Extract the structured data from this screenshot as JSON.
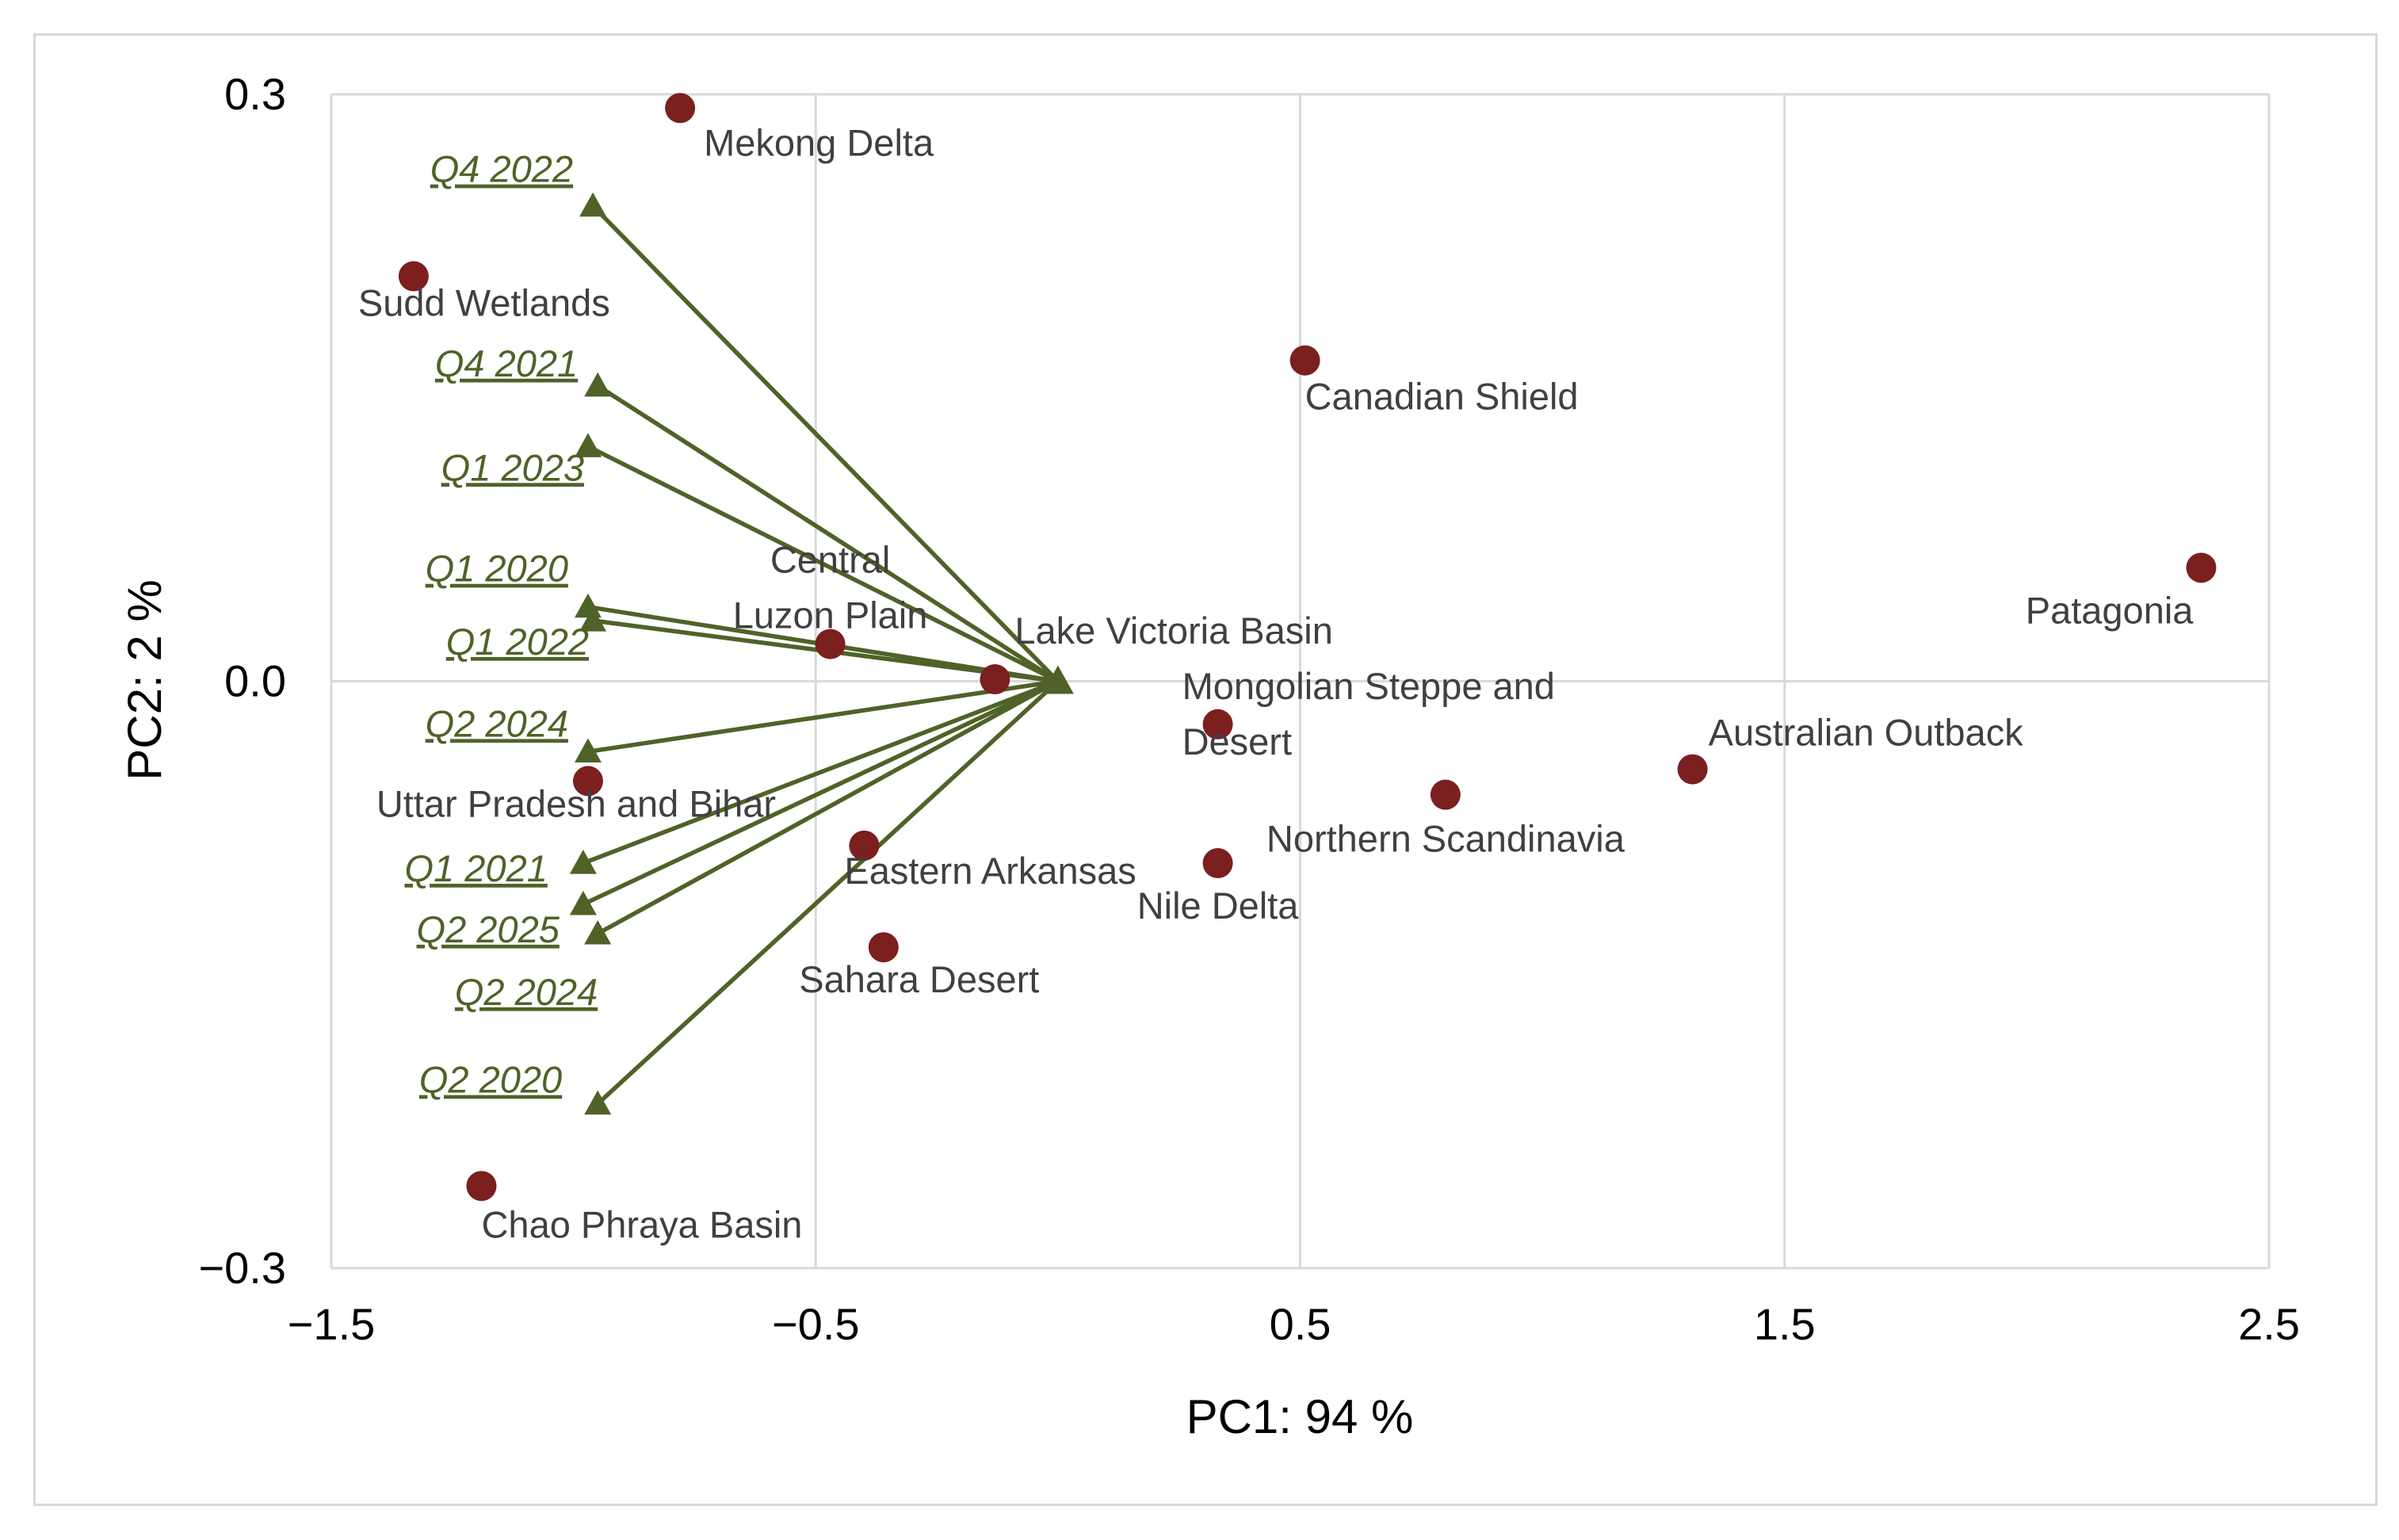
{
  "chart_data": {
    "type": "scatter",
    "subtype": "pca-biplot",
    "title": "",
    "xlabel": "PC1: 94 %",
    "ylabel": "PC2: 2 %",
    "xlim": [
      -1.5,
      2.5
    ],
    "ylim": [
      -0.3,
      0.3
    ],
    "x_ticks": [
      -1.5,
      -0.5,
      0.5,
      1.5,
      2.5
    ],
    "x_tick_labels": [
      "−1.5",
      "−0.5",
      "0.5",
      "1.5",
      "2.5"
    ],
    "y_ticks": [
      -0.3,
      0.0,
      0.3
    ],
    "y_tick_labels": [
      "−0.3",
      "0.0",
      "0.3"
    ],
    "grid": true,
    "colors": {
      "points": "#7b1f1f",
      "loadings": "#4f6228",
      "grid": "#d9d9d9",
      "point_label": "#404040"
    },
    "vector_origin": [
      0.0,
      0.0
    ],
    "points": [
      {
        "name": "Mekong Delta",
        "x": -0.78,
        "y": 0.293,
        "label_lines": [
          "Mekong Delta"
        ]
      },
      {
        "name": "Sudd Wetlands",
        "x": -1.33,
        "y": 0.207,
        "label_lines": [
          "Sudd Wetlands"
        ]
      },
      {
        "name": "Canadian Shield",
        "x": 0.51,
        "y": 0.164,
        "label_lines": [
          "Canadian Shield"
        ]
      },
      {
        "name": "Patagonia",
        "x": 2.36,
        "y": 0.058,
        "label_lines": [
          "Patagonia"
        ]
      },
      {
        "name": "Central Luzon Plain",
        "x": -0.47,
        "y": 0.019,
        "label_lines": [
          "Central",
          "Luzon Plain"
        ]
      },
      {
        "name": "Lake Victoria Basin",
        "x": -0.13,
        "y": 0.001,
        "label_lines": [
          "Lake Victoria Basin"
        ]
      },
      {
        "name": "Mongolian Steppe and Desert",
        "x": 0.33,
        "y": -0.022,
        "label_lines": [
          "Mongolian Steppe and",
          "Desert"
        ]
      },
      {
        "name": "Australian Outback",
        "x": 1.31,
        "y": -0.045,
        "label_lines": [
          "Australian Outback"
        ]
      },
      {
        "name": "Northern Scandinavia",
        "x": 0.8,
        "y": -0.058,
        "label_lines": [
          "Northern Scandinavia"
        ]
      },
      {
        "name": "Uttar Pradesh and Bihar",
        "x": -0.97,
        "y": -0.051,
        "label_lines": [
          "Uttar Pradesh and Bihar"
        ]
      },
      {
        "name": "Eastern Arkansas",
        "x": -0.4,
        "y": -0.084,
        "label_lines": [
          "Eastern Arkansas"
        ]
      },
      {
        "name": "Nile Delta",
        "x": 0.33,
        "y": -0.093,
        "label_lines": [
          "Nile Delta"
        ]
      },
      {
        "name": "Sahara Desert",
        "x": -0.36,
        "y": -0.136,
        "label_lines": [
          "Sahara Desert"
        ]
      },
      {
        "name": "Chao Phraya Basin",
        "x": -1.19,
        "y": -0.258,
        "label_lines": [
          "Chao Phraya Basin"
        ]
      }
    ],
    "loadings": [
      {
        "name": "Q4 2022",
        "x": -0.96,
        "y": 0.243
      },
      {
        "name": "Q4 2021",
        "x": -0.95,
        "y": 0.151
      },
      {
        "name": "Q1 2023",
        "x": -0.97,
        "y": 0.12
      },
      {
        "name": "Q1 2020",
        "x": -0.97,
        "y": 0.038
      },
      {
        "name": "Q1 2022",
        "x": -0.96,
        "y": 0.031
      },
      {
        "name": "Q2 2024",
        "x": -0.97,
        "y": -0.036
      },
      {
        "name": "Q1 2021",
        "x": -0.98,
        "y": -0.093
      },
      {
        "name": "Q2 2025",
        "x": -0.98,
        "y": -0.114
      },
      {
        "name": "Q2 2024",
        "x": -0.95,
        "y": -0.129
      },
      {
        "name": "Q2 2020",
        "x": -0.95,
        "y": -0.216
      }
    ]
  }
}
